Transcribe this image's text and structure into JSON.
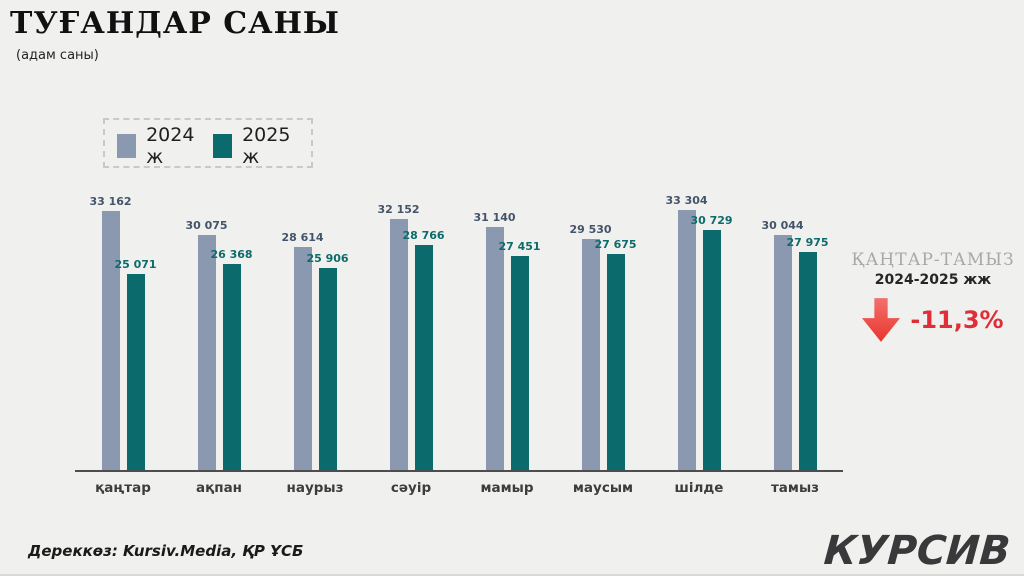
{
  "page": {
    "title": "ТУҒАНДАР САНЫ",
    "subtitle": "(адам саны)"
  },
  "legend": {
    "items": [
      {
        "label": "2024 ж",
        "color": "#8b99b0"
      },
      {
        "label": "2025 ж",
        "color": "#0b6a6c"
      }
    ]
  },
  "chart_data": {
    "type": "bar",
    "title": "ТУҒАНДАР САНЫ (адам саны)",
    "categories": [
      "қаңтар",
      "ақпан",
      "наурыз",
      "сәуір",
      "мамыр",
      "маусым",
      "шілде",
      "тамыз"
    ],
    "series": [
      {
        "name": "2024 ж",
        "color": "#8b99b0",
        "label_color": "#44546a",
        "values": [
          33162,
          30075,
          28614,
          32152,
          31140,
          29530,
          33304,
          30044
        ]
      },
      {
        "name": "2025 ж",
        "color": "#0b6a6c",
        "label_color": "#0e6b6b",
        "values": [
          25071,
          26368,
          25906,
          28766,
          27451,
          27675,
          30729,
          27975
        ]
      }
    ],
    "ylim": [
      0,
      33304
    ],
    "grid": false,
    "legend_position": "top-left",
    "value_labels": true,
    "xlabel": "",
    "ylabel": ""
  },
  "annotation": {
    "period": "ҚАҢТАР-ТАМЫЗ",
    "years": "2024-2025 жж",
    "change": "-11,3%",
    "change_color": "#e02e38",
    "arrow_icon": "red-down-arrow",
    "arrow_color_top": "#f1726b",
    "arrow_color_bottom": "#e8352e"
  },
  "footer": {
    "source": "Дереккөз: Kursiv.Media, ҚР ҰСБ",
    "logo": "КУРСИВ"
  }
}
